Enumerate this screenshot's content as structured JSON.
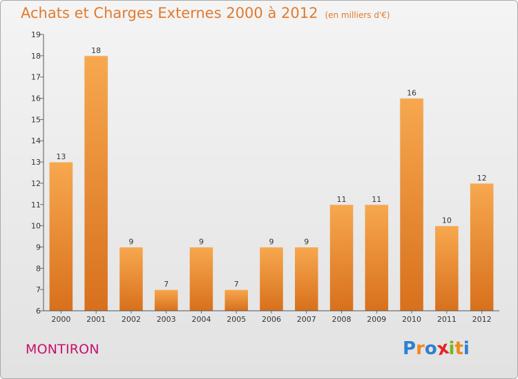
{
  "header": {
    "title": "Achats et Charges Externes 2000 à 2012",
    "unit": "(en milliers d'€)"
  },
  "footer": {
    "commune": "MONTIRON",
    "logo": [
      "P",
      "r",
      "o",
      "x",
      "i",
      "t",
      "i"
    ]
  },
  "colors": {
    "title": "#e07b2e",
    "commune": "#c8106c",
    "bar_light": "#f7a84f",
    "bar_dark": "#d8701c",
    "logo": [
      "#2e7fd1",
      "#f08a1c",
      "#2e7fd1",
      "#e52222",
      "#7ab51d",
      "#f08a1c",
      "#2e7fd1"
    ]
  },
  "chart_data": {
    "type": "bar",
    "title": "Achats et Charges Externes 2000 à 2012",
    "subtitle": "(en milliers d'€)",
    "categories": [
      "2000",
      "2001",
      "2002",
      "2003",
      "2004",
      "2005",
      "2006",
      "2007",
      "2008",
      "2009",
      "2010",
      "2011",
      "2012"
    ],
    "values": [
      13,
      18,
      9,
      7,
      9,
      7,
      9,
      9,
      11,
      11,
      16,
      10,
      12
    ],
    "ylim": [
      6,
      19
    ],
    "yticks": [
      6,
      7,
      8,
      9,
      10,
      11,
      12,
      13,
      14,
      15,
      16,
      17,
      18,
      19
    ],
    "xlabel": "",
    "ylabel": "",
    "grid": false,
    "legend": "none"
  }
}
